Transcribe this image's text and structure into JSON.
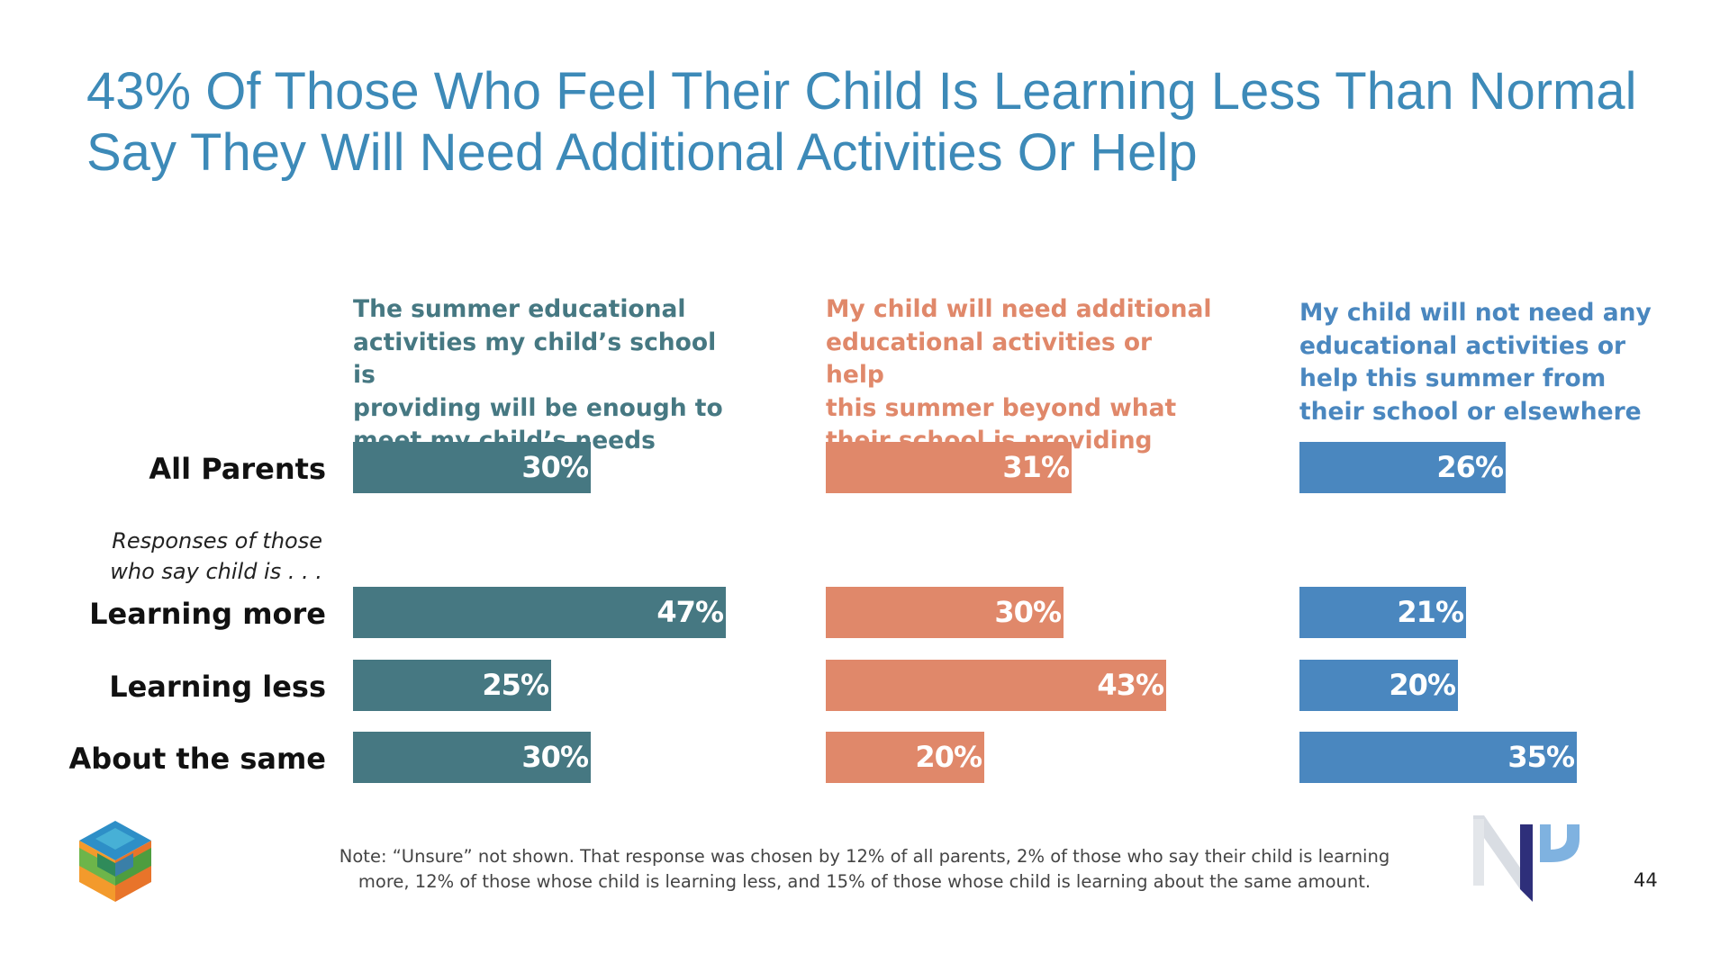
{
  "title_line1": "43% Of Those Who Feel Their Child Is Learning Less Than Normal",
  "title_line2": "Say They Will Need Additional Activities Or Help",
  "chart_data": {
    "type": "bar",
    "orientation": "horizontal",
    "categories": [
      "All Parents",
      "Learning more",
      "Learning less",
      "About the same"
    ],
    "subgroup_caption": [
      "Responses of those",
      "who say child is . . ."
    ],
    "series": [
      {
        "name": "The summer educational activities my child's school is providing will be enough to meet my child's needs",
        "name_lines": [
          "The summer educational",
          "activities my child’s school is",
          "providing will be enough to",
          "meet my child’s needs"
        ],
        "color": "#467882",
        "values": [
          30,
          47,
          25,
          30
        ],
        "labels": [
          "30%",
          "47%",
          "25%",
          "30%"
        ]
      },
      {
        "name": "My child will need additional educational activities or help this summer beyond what their school is providing",
        "name_lines": [
          "My child will need additional",
          "educational activities or help",
          "this summer beyond what",
          "their school is providing"
        ],
        "color": "#e0886a",
        "values": [
          31,
          30,
          43,
          20
        ],
        "labels": [
          "31%",
          "30%",
          "43%",
          "20%"
        ]
      },
      {
        "name": "My child will not need any educational activities or help this summer from their school or elsewhere",
        "name_lines": [
          "My child will not need any",
          "educational activities or",
          "help this summer from",
          "their school or elsewhere"
        ],
        "color": "#4a87bf",
        "values": [
          26,
          21,
          20,
          35
        ],
        "labels": [
          "26%",
          "21%",
          "20%",
          "35%"
        ]
      }
    ],
    "value_unit": "%",
    "grid": false,
    "legend": "column headers above each bar group"
  },
  "note_line1": "Note: “Unsure” not shown. That response was chosen by 12% of all parents, 2% of those who say their child is learning",
  "note_line2": "more, 12% of those whose child is learning less, and 15% of those whose child is learning about the same amount.",
  "page_number": "44",
  "logos": {
    "left": "cube-logo-icon",
    "right": "np-logo-icon"
  }
}
